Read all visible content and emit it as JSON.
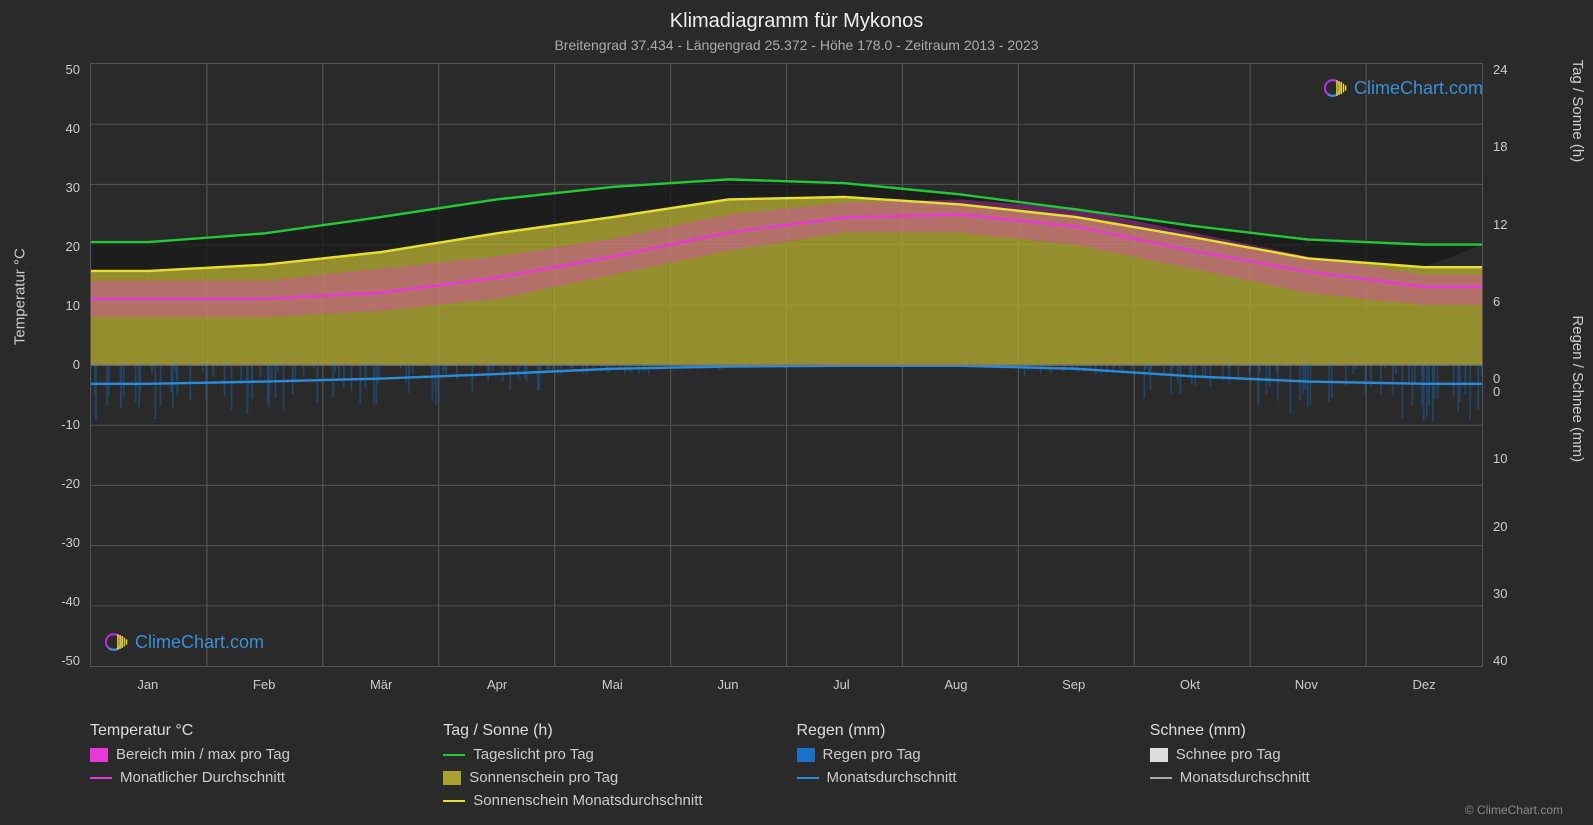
{
  "title": "Klimadiagramm für Mykonos",
  "subtitle": "Breitengrad 37.434 - Längengrad 25.372 - Höhe 178.0 - Zeitraum 2013 - 2023",
  "chart": {
    "type": "line",
    "background_color": "#2a2a2a",
    "grid_color": "#555555",
    "text_color": "#cccccc",
    "months": [
      "Jan",
      "Feb",
      "Mär",
      "Apr",
      "Mai",
      "Jun",
      "Jul",
      "Aug",
      "Sep",
      "Okt",
      "Nov",
      "Dez"
    ],
    "y_left": {
      "label": "Temperatur °C",
      "min": -50,
      "max": 50,
      "step": 10,
      "ticks": [
        "50",
        "40",
        "30",
        "20",
        "10",
        "0",
        "-10",
        "-20",
        "-30",
        "-40",
        "-50"
      ]
    },
    "y_right_top": {
      "label": "Tag / Sonne (h)",
      "min": 0,
      "max": 24,
      "step": 6,
      "ticks": [
        "24",
        "18",
        "12",
        "6",
        "0"
      ]
    },
    "y_right_bottom": {
      "label": "Regen / Schnee (mm)",
      "min": 0,
      "max": 40,
      "step": 10,
      "ticks": [
        "0",
        "10",
        "20",
        "30",
        "40"
      ]
    },
    "series": {
      "daylight": {
        "color": "#22c935",
        "label": "Tageslicht pro Tag",
        "unit": "h",
        "width": 2,
        "values_h": [
          9.8,
          10.5,
          11.8,
          13.2,
          14.2,
          14.8,
          14.5,
          13.6,
          12.4,
          11.1,
          10.0,
          9.6
        ]
      },
      "sunshine_avg": {
        "color": "#e6e032",
        "label": "Sonnenschein Monatsdurchschnitt",
        "unit": "h",
        "width": 2,
        "values_h": [
          7.5,
          8.0,
          9.0,
          10.5,
          11.8,
          13.2,
          13.4,
          12.8,
          11.8,
          10.2,
          8.5,
          7.8
        ]
      },
      "sunshine_fill": {
        "color": "#a8a030",
        "opacity": 0.85,
        "label": "Sonnenschein pro Tag"
      },
      "temp_avg": {
        "color": "#e838d8",
        "label": "Monatlicher Durchschnitt",
        "unit": "°C",
        "width": 2,
        "values_c": [
          11,
          11,
          12,
          14.5,
          18,
          22,
          24.5,
          25,
          23,
          19,
          15.5,
          13
        ]
      },
      "temp_range": {
        "color": "#e838d8",
        "opacity": 0.6,
        "label": "Bereich min / max pro Tag",
        "min_c": [
          8,
          8,
          9,
          11,
          15,
          19,
          22,
          22,
          20,
          16,
          12,
          10
        ],
        "max_c": [
          14,
          14,
          16,
          18,
          21,
          25,
          27,
          27.5,
          26,
          22,
          18,
          15
        ]
      },
      "rain_avg": {
        "color": "#2a8bd8",
        "label": "Monatsdurchschnitt",
        "unit": "mm",
        "width": 2,
        "values_mm": [
          2.5,
          2.2,
          1.8,
          1.2,
          0.5,
          0.2,
          0.1,
          0.1,
          0.5,
          1.5,
          2.2,
          2.5
        ]
      },
      "rain_bars": {
        "color": "#1a5fa8",
        "opacity": 0.5,
        "label": "Regen pro Tag"
      },
      "snow_bars": {
        "color": "#dddddd",
        "label": "Schnee pro Tag"
      },
      "snow_avg": {
        "color": "#aaaaaa",
        "label": "Monatsdurchschnitt"
      }
    }
  },
  "legend": {
    "groups": [
      {
        "title": "Temperatur °C",
        "items": [
          {
            "type": "swatch",
            "color": "#e838d8",
            "label": "Bereich min / max pro Tag"
          },
          {
            "type": "line",
            "color": "#e838d8",
            "label": "Monatlicher Durchschnitt"
          }
        ]
      },
      {
        "title": "Tag / Sonne (h)",
        "items": [
          {
            "type": "line",
            "color": "#22c935",
            "label": "Tageslicht pro Tag"
          },
          {
            "type": "swatch",
            "color": "#a8a030",
            "label": "Sonnenschein pro Tag"
          },
          {
            "type": "line",
            "color": "#e6e032",
            "label": "Sonnenschein Monatsdurchschnitt"
          }
        ]
      },
      {
        "title": "Regen (mm)",
        "items": [
          {
            "type": "swatch",
            "color": "#1a6fc8",
            "label": "Regen pro Tag"
          },
          {
            "type": "line",
            "color": "#2a8bd8",
            "label": "Monatsdurchschnitt"
          }
        ]
      },
      {
        "title": "Schnee (mm)",
        "items": [
          {
            "type": "swatch",
            "color": "#dddddd",
            "label": "Schnee pro Tag"
          },
          {
            "type": "line",
            "color": "#aaaaaa",
            "label": "Monatsdurchschnitt"
          }
        ]
      }
    ]
  },
  "watermark": {
    "text": "ClimeChart.com",
    "color": "#3a8fd8",
    "icon_colors": {
      "ring": "#b030e0",
      "sun": "#e0d030"
    }
  },
  "copyright": "© ClimeChart.com"
}
